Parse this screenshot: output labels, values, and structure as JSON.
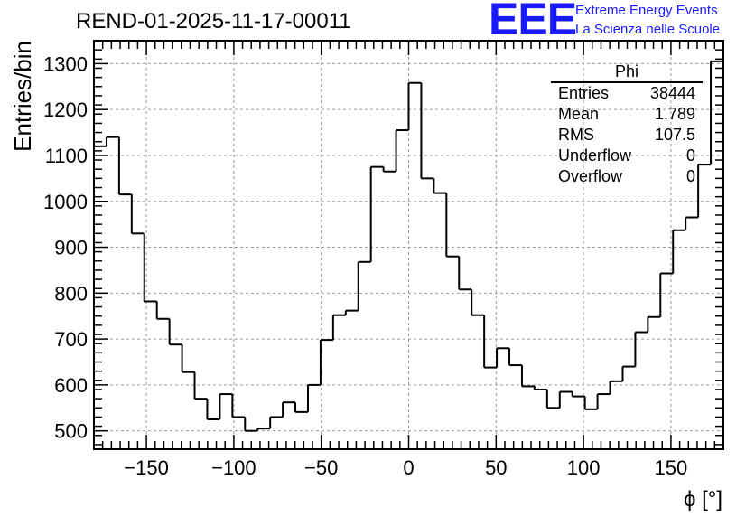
{
  "header": {
    "run_title": "REND-01-2025-11-17-00011",
    "logo_text": "EEE",
    "logo_line1": "Extreme Energy Events",
    "logo_line2": "La Scienza nelle Scuole"
  },
  "stats_box": {
    "title": "Phi",
    "rows": [
      {
        "label": "Entries",
        "value": "38444"
      },
      {
        "label": "Mean",
        "value": "1.789"
      },
      {
        "label": "RMS",
        "value": "107.5"
      },
      {
        "label": "Underflow",
        "value": "0"
      },
      {
        "label": "Overflow",
        "value": "0"
      }
    ]
  },
  "chart_data": {
    "type": "histogram",
    "title": "REND-01-2025-11-17-00011",
    "xlabel": "ϕ [°]",
    "ylabel": "Entries/bin",
    "xlim": [
      -180,
      180
    ],
    "ylim": [
      460,
      1350
    ],
    "bin_width": 7.2,
    "x_ticks": [
      -150,
      -100,
      -50,
      0,
      50,
      100,
      150
    ],
    "x_tick_labels": [
      "−150",
      "−100",
      "−50",
      "0",
      "50",
      "100",
      "150"
    ],
    "y_ticks": [
      500,
      600,
      700,
      800,
      900,
      1000,
      1100,
      1200,
      1300
    ],
    "y_tick_labels": [
      "500",
      "600",
      "700",
      "800",
      "900",
      "1000",
      "1100",
      "1200",
      "1300"
    ],
    "grid": true,
    "line_color": "#000000",
    "values": [
      1120,
      1140,
      1015,
      930,
      782,
      744,
      688,
      628,
      570,
      525,
      580,
      530,
      500,
      505,
      530,
      562,
      541,
      600,
      698,
      752,
      762,
      868,
      1075,
      1065,
      1155,
      1258,
      1050,
      1018,
      880,
      808,
      752,
      638,
      680,
      643,
      597,
      590,
      550,
      585,
      575,
      547,
      580,
      608,
      640,
      715,
      748,
      843,
      937,
      965,
      1080,
      1305
    ]
  }
}
